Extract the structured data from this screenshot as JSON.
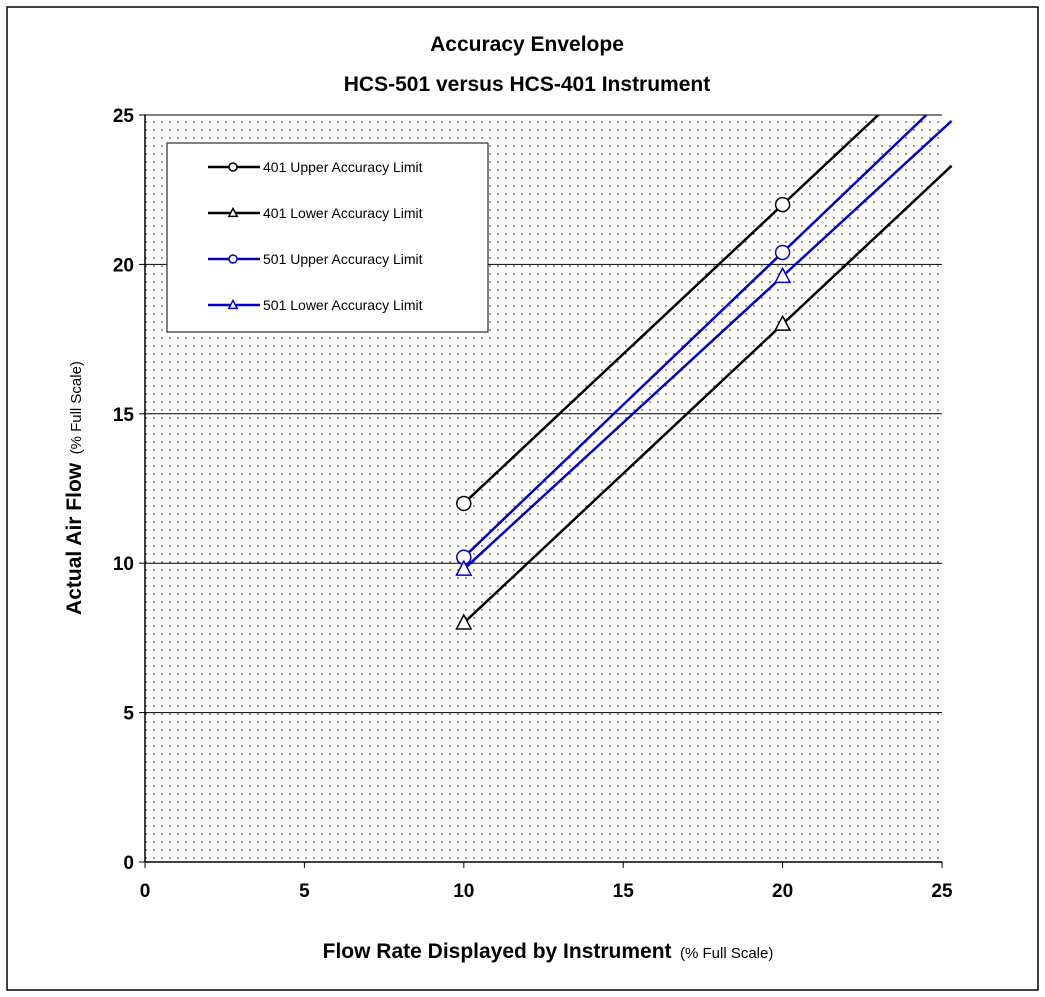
{
  "chart_data": {
    "type": "line",
    "title_lines": [
      "Accuracy Envelope",
      "HCS-501 versus HCS-401 Instrument"
    ],
    "xlabel": "Flow Rate Displayed by Instrument",
    "xlabel_unit": "(% Full Scale)",
    "ylabel": "Actual Air Flow",
    "ylabel_unit": "(% Full Scale)",
    "xlim": [
      0,
      25
    ],
    "ylim": [
      0,
      25
    ],
    "x_ticks": [
      "0",
      "5",
      "10",
      "15",
      "20",
      "25"
    ],
    "y_ticks": [
      "0",
      "5",
      "10",
      "15",
      "20",
      "25"
    ],
    "grid": "horizontal",
    "plot_background": "dotted",
    "legend_position": "top-left",
    "series": [
      {
        "name": "401 Upper Accuracy Limit",
        "color": "#000000",
        "marker": "circle",
        "markers": [
          [
            10,
            12
          ],
          [
            20,
            22
          ]
        ],
        "line": [
          [
            10,
            12
          ],
          [
            23.6,
            25.6
          ]
        ]
      },
      {
        "name": "401 Lower Accuracy Limit",
        "color": "#000000",
        "marker": "triangle",
        "markers": [
          [
            10,
            8
          ],
          [
            20,
            18
          ]
        ],
        "line": [
          [
            10,
            8
          ],
          [
            25.3,
            23.3
          ]
        ]
      },
      {
        "name": "501 Upper Accuracy Limit",
        "color": "#0000cc",
        "marker": "circle",
        "markers": [
          [
            10,
            10.2
          ],
          [
            20,
            20.4
          ]
        ],
        "line": [
          [
            10,
            10.2
          ],
          [
            24.9,
            25.4
          ]
        ]
      },
      {
        "name": "501 Lower Accuracy Limit",
        "color": "#0000cc",
        "marker": "triangle",
        "markers": [
          [
            10,
            9.8
          ],
          [
            20,
            19.6
          ]
        ],
        "line": [
          [
            10,
            9.8
          ],
          [
            25.3,
            24.8
          ]
        ]
      }
    ]
  }
}
